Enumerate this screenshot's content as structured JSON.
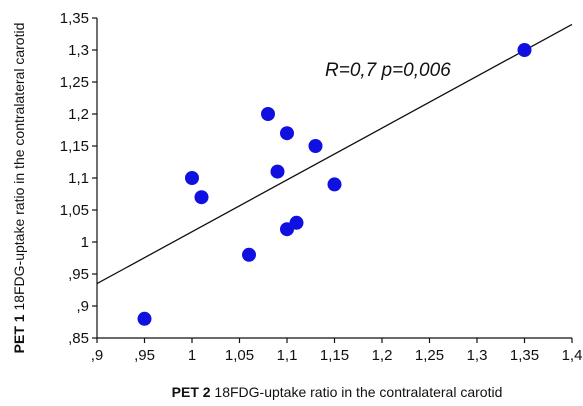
{
  "chart_data": {
    "type": "scatter",
    "xlim": [
      0.9,
      1.4
    ],
    "ylim": [
      0.85,
      1.35
    ],
    "x_ticks": [
      0.9,
      0.95,
      1.0,
      1.05,
      1.1,
      1.15,
      1.2,
      1.25,
      1.3,
      1.35,
      1.4
    ],
    "x_tick_labels": [
      ",9",
      ",95",
      "1",
      "1,05",
      "1,1",
      "1,15",
      "1,2",
      "1,25",
      "1,3",
      "1,35",
      "1,4"
    ],
    "y_ticks": [
      0.85,
      0.9,
      0.95,
      1.0,
      1.05,
      1.1,
      1.15,
      1.2,
      1.25,
      1.3,
      1.35
    ],
    "y_tick_labels": [
      ",85",
      ",9",
      ",95",
      "1",
      "1,05",
      "1,1",
      "1,15",
      "1,2",
      "1,25",
      "1,3",
      "1,35"
    ],
    "xlabel_bold": "PET 2",
    "xlabel_rest": " 18FDG-uptake ratio in the contralateral carotid",
    "ylabel_bold": "PET 1",
    "ylabel_rest": " 18FDG-uptake ratio in the contralateral carotid",
    "annotation": "R=0,7 p=0,006",
    "grid": false,
    "marker_color": "#1010e0",
    "points": [
      {
        "x": 0.95,
        "y": 0.88
      },
      {
        "x": 1.0,
        "y": 1.1
      },
      {
        "x": 1.01,
        "y": 1.07
      },
      {
        "x": 1.06,
        "y": 0.98
      },
      {
        "x": 1.08,
        "y": 1.2
      },
      {
        "x": 1.09,
        "y": 1.11
      },
      {
        "x": 1.1,
        "y": 1.17
      },
      {
        "x": 1.1,
        "y": 1.02
      },
      {
        "x": 1.11,
        "y": 1.03
      },
      {
        "x": 1.13,
        "y": 1.15
      },
      {
        "x": 1.15,
        "y": 1.09
      },
      {
        "x": 1.35,
        "y": 1.3
      }
    ],
    "trend_line": {
      "x1": 0.9,
      "y1": 0.935,
      "x2": 1.4,
      "y2": 1.34
    }
  }
}
